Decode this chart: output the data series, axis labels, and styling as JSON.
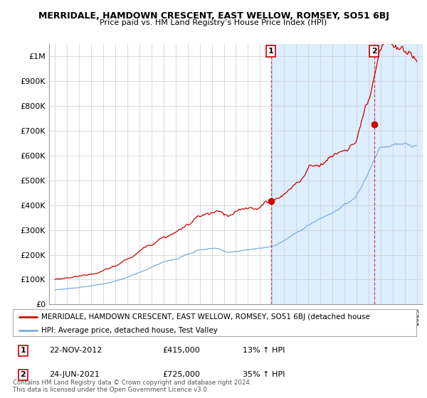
{
  "title": "MERRIDALE, HAMDOWN CRESCENT, EAST WELLOW, ROMSEY, SO51 6BJ",
  "subtitle": "Price paid vs. HM Land Registry’s House Price Index (HPI)",
  "legend_line1": "MERRIDALE, HAMDOWN CRESCENT, EAST WELLOW, ROMSEY, SO51 6BJ (detached house",
  "legend_line2": "HPI: Average price, detached house, Test Valley",
  "annotation1_label": "1",
  "annotation1_date": "22-NOV-2012",
  "annotation1_price": "£415,000",
  "annotation1_hpi": "13% ↑ HPI",
  "annotation2_label": "2",
  "annotation2_date": "24-JUN-2021",
  "annotation2_price": "£725,000",
  "annotation2_hpi": "35% ↑ HPI",
  "copyright": "Contains HM Land Registry data © Crown copyright and database right 2024.\nThis data is licensed under the Open Government Licence v3.0.",
  "line_color_red": "#cc0000",
  "line_color_blue": "#7aacdc",
  "shade_color": "#ddeeff",
  "background_color": "#ffffff",
  "grid_color": "#cccccc",
  "sale1_year": 2012.9,
  "sale1_price": 415000,
  "sale2_year": 2021.47,
  "sale2_price": 725000,
  "ytick_vals": [
    0,
    100000,
    200000,
    300000,
    400000,
    500000,
    600000,
    700000,
    800000,
    900000,
    1000000
  ],
  "ytick_labels": [
    "£0",
    "£100K",
    "£200K",
    "£300K",
    "£400K",
    "£500K",
    "£600K",
    "£700K",
    "£800K",
    "£900K",
    "£1M"
  ]
}
